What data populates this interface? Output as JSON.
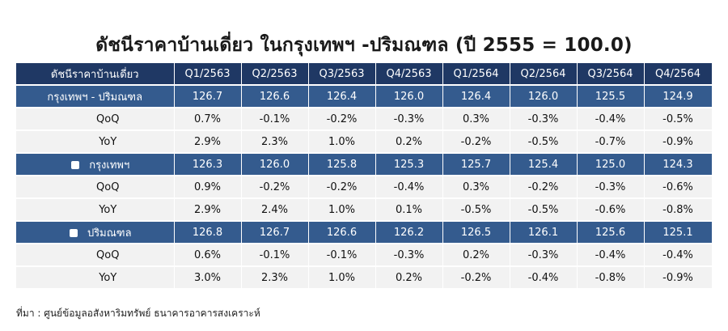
{
  "title": "ดัชนีราคาบ้านเดี่ยว ในกรุงเทพฯ -ปริมณฑล (ปี 2555 = 100.0)",
  "header": {
    "label": "ดัชนีราคาบ้านเดี่ยว",
    "quarters": [
      "Q1/2563",
      "Q2/2563",
      "Q3/2563",
      "Q4/2563",
      "Q1/2564",
      "Q2/2564",
      "Q3/2564",
      "Q4/2564"
    ]
  },
  "rows": [
    {
      "type": "region",
      "label": "กรุงเทพฯ - ปริมณฑล",
      "bullet": false,
      "values": [
        "126.7",
        "126.6",
        "126.4",
        "126.0",
        "126.4",
        "126.0",
        "125.5",
        "124.9"
      ]
    },
    {
      "type": "metric",
      "label": "QoQ",
      "values": [
        "0.7%",
        "-0.1%",
        "-0.2%",
        "-0.3%",
        "0.3%",
        "-0.3%",
        "-0.4%",
        "-0.5%"
      ]
    },
    {
      "type": "metric",
      "label": "YoY",
      "values": [
        "2.9%",
        "2.3%",
        "1.0%",
        "0.2%",
        "-0.2%",
        "-0.5%",
        "-0.7%",
        "-0.9%"
      ]
    },
    {
      "type": "region",
      "label": "กรุงเทพฯ",
      "bullet": true,
      "values": [
        "126.3",
        "126.0",
        "125.8",
        "125.3",
        "125.7",
        "125.4",
        "125.0",
        "124.3"
      ]
    },
    {
      "type": "metric",
      "label": "QoQ",
      "values": [
        "0.9%",
        "-0.2%",
        "-0.2%",
        "-0.4%",
        "0.3%",
        "-0.2%",
        "-0.3%",
        "-0.6%"
      ]
    },
    {
      "type": "metric",
      "label": "YoY",
      "values": [
        "2.9%",
        "2.4%",
        "1.0%",
        "0.1%",
        "-0.5%",
        "-0.5%",
        "-0.6%",
        "-0.8%"
      ]
    },
    {
      "type": "region",
      "label": "ปริมณฑล",
      "bullet": true,
      "values": [
        "126.8",
        "126.7",
        "126.6",
        "126.2",
        "126.5",
        "126.1",
        "125.6",
        "125.1"
      ]
    },
    {
      "type": "metric",
      "label": "QoQ",
      "values": [
        "0.6%",
        "-0.1%",
        "-0.1%",
        "-0.3%",
        "0.2%",
        "-0.3%",
        "-0.4%",
        "-0.4%"
      ]
    },
    {
      "type": "metric",
      "label": "YoY",
      "values": [
        "3.0%",
        "2.3%",
        "1.0%",
        "0.2%",
        "-0.2%",
        "-0.4%",
        "-0.8%",
        "-0.9%"
      ]
    }
  ],
  "source": "ที่มา : ศูนย์ข้อมูลอสังหาริมทรัพย์ ธนาคารอาคารสงเคราะห์",
  "colors": {
    "header_bg": "#1f3864",
    "region_bg": "#345b8e",
    "metric_bg": "#f2f2f2",
    "negative": "#ff0000"
  }
}
